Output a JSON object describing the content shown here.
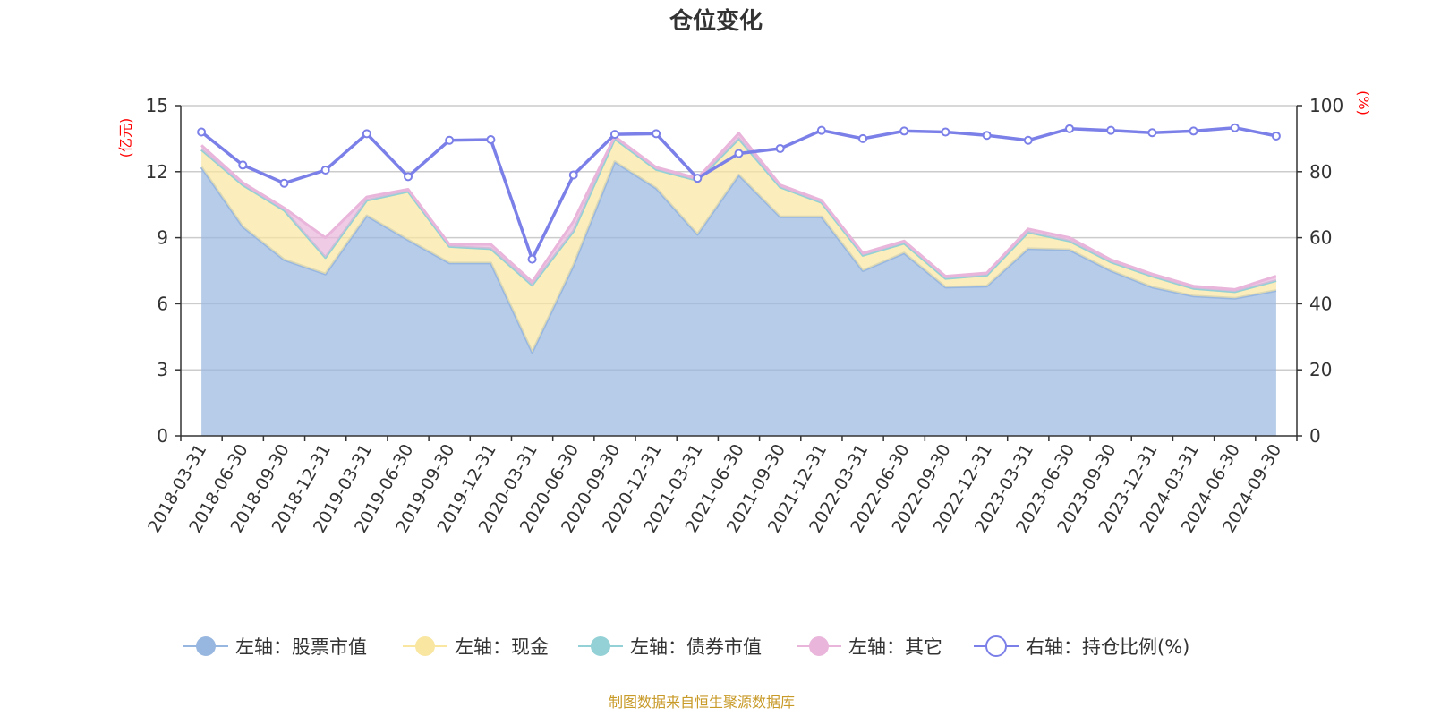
{
  "chart_data": {
    "type": "area",
    "title": "仓位变化",
    "left_unit": "(亿元)",
    "right_unit": "(%)",
    "source": "制图数据来自恒生聚源数据库",
    "categories": [
      "2018-03-31",
      "2018-06-30",
      "2018-09-30",
      "2018-12-31",
      "2019-03-31",
      "2019-06-30",
      "2019-09-30",
      "2019-12-31",
      "2020-03-31",
      "2020-06-30",
      "2020-09-30",
      "2020-12-31",
      "2021-03-31",
      "2021-06-30",
      "2021-09-30",
      "2021-12-31",
      "2022-03-31",
      "2022-06-30",
      "2022-09-30",
      "2022-12-31",
      "2023-03-31",
      "2023-06-30",
      "2023-09-30",
      "2023-12-31",
      "2024-03-31",
      "2024-06-30",
      "2024-09-30"
    ],
    "y_left": {
      "min": 0,
      "max": 15,
      "ticks": [
        0,
        3,
        6,
        9,
        12,
        15
      ]
    },
    "y_right": {
      "min": 0,
      "max": 100,
      "ticks": [
        0,
        20,
        40,
        60,
        80,
        100
      ]
    },
    "grid": true,
    "legend_position": "bottom",
    "series": [
      {
        "name": "左轴：股票市值",
        "axis": "left",
        "stack": true,
        "color": "#98b7e0",
        "values": [
          12.2,
          9.5,
          8.0,
          7.35,
          10.0,
          8.9,
          7.85,
          7.85,
          3.8,
          7.75,
          12.45,
          11.25,
          9.15,
          11.85,
          9.95,
          9.95,
          7.5,
          8.3,
          6.75,
          6.8,
          8.5,
          8.45,
          7.5,
          6.75,
          6.35,
          6.25,
          6.6
        ]
      },
      {
        "name": "左轴：现金",
        "axis": "left",
        "stack": true,
        "color": "#f9e6a0",
        "values": [
          0.8,
          1.9,
          2.25,
          0.75,
          0.7,
          2.2,
          0.75,
          0.65,
          3.05,
          1.55,
          1.05,
          0.85,
          2.45,
          1.65,
          1.35,
          0.65,
          0.7,
          0.45,
          0.4,
          0.5,
          0.75,
          0.4,
          0.4,
          0.5,
          0.35,
          0.3,
          0.45
        ]
      },
      {
        "name": "左轴：债券市值",
        "axis": "left",
        "stack": true,
        "color": "#93d1d6",
        "values": [
          0,
          0,
          0,
          0,
          0,
          0,
          0,
          0,
          0,
          0,
          0,
          0,
          0,
          0,
          0,
          0,
          0,
          0,
          0,
          0,
          0,
          0,
          0,
          0,
          0,
          0,
          0
        ]
      },
      {
        "name": "左轴：其它",
        "axis": "left",
        "stack": true,
        "color": "#e9b5db",
        "values": [
          0.2,
          0.1,
          0.1,
          0.9,
          0.15,
          0.1,
          0.1,
          0.2,
          0.15,
          0.45,
          0.1,
          0.1,
          0.1,
          0.25,
          0.1,
          0.1,
          0.1,
          0.1,
          0.1,
          0.1,
          0.15,
          0.15,
          0.1,
          0.1,
          0.1,
          0.1,
          0.2
        ]
      },
      {
        "name": "右轴：持仓比例(%)",
        "axis": "right",
        "type": "line",
        "color": "#7b7fe8",
        "values": [
          92.0,
          82.0,
          76.5,
          80.5,
          91.5,
          78.5,
          89.5,
          89.7,
          53.5,
          79.0,
          91.3,
          91.5,
          78.0,
          85.5,
          87.0,
          92.5,
          90.0,
          92.3,
          92.0,
          91.0,
          89.5,
          93.0,
          92.5,
          91.8,
          92.3,
          93.3,
          90.8
        ]
      }
    ]
  }
}
